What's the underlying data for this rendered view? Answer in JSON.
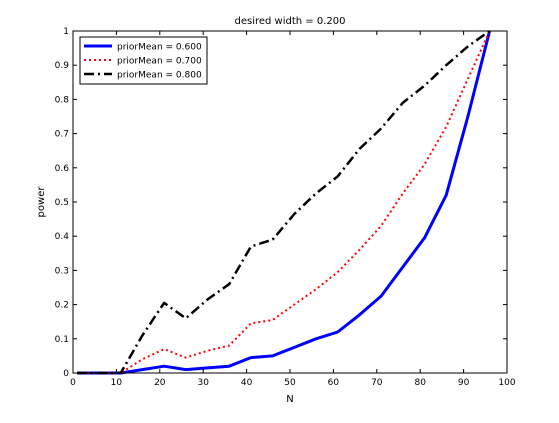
{
  "chart_data": {
    "type": "line",
    "title": "desired width = 0.200",
    "xlabel": "N",
    "ylabel": "power",
    "xlim": [
      0,
      100
    ],
    "ylim": [
      0,
      1
    ],
    "xticks": [
      "0",
      "10",
      "20",
      "30",
      "40",
      "50",
      "60",
      "70",
      "80",
      "90",
      "100"
    ],
    "yticks": [
      "0",
      "0.1",
      "0.2",
      "0.3",
      "0.4",
      "0.5",
      "0.6",
      "0.7",
      "0.8",
      "0.9",
      "1"
    ],
    "grid": false,
    "legend_position": "top-left",
    "series": [
      {
        "name": "priorMean = 0.600",
        "color": "#0000ff",
        "style": "solid",
        "x": [
          1,
          6,
          11,
          16,
          21,
          26,
          31,
          36,
          41,
          46,
          51,
          56,
          61,
          66,
          71,
          76,
          81,
          86,
          91,
          96
        ],
        "y": [
          0,
          0,
          0,
          0.01,
          0.02,
          0.01,
          0.015,
          0.02,
          0.045,
          0.05,
          0.075,
          0.1,
          0.12,
          0.17,
          0.225,
          0.31,
          0.395,
          0.52,
          0.75,
          1.0
        ]
      },
      {
        "name": "priorMean = 0.700",
        "color": "#ff0000",
        "style": "dotted",
        "x": [
          1,
          6,
          11,
          16,
          21,
          26,
          31,
          36,
          41,
          46,
          51,
          56,
          61,
          66,
          71,
          76,
          81,
          86,
          91,
          96
        ],
        "y": [
          0,
          0,
          0,
          0.04,
          0.07,
          0.045,
          0.065,
          0.08,
          0.145,
          0.155,
          0.2,
          0.245,
          0.295,
          0.36,
          0.43,
          0.525,
          0.61,
          0.72,
          0.86,
          1.0
        ]
      },
      {
        "name": "priorMean = 0.800",
        "color": "#000000",
        "style": "dashdot",
        "x": [
          1,
          6,
          11,
          16,
          21,
          26,
          31,
          36,
          41,
          46,
          51,
          56,
          61,
          66,
          71,
          76,
          81,
          86,
          91,
          96
        ],
        "y": [
          0,
          0,
          0,
          0.11,
          0.205,
          0.16,
          0.215,
          0.26,
          0.37,
          0.39,
          0.465,
          0.525,
          0.575,
          0.655,
          0.715,
          0.79,
          0.84,
          0.9,
          0.955,
          1.0
        ]
      }
    ]
  }
}
